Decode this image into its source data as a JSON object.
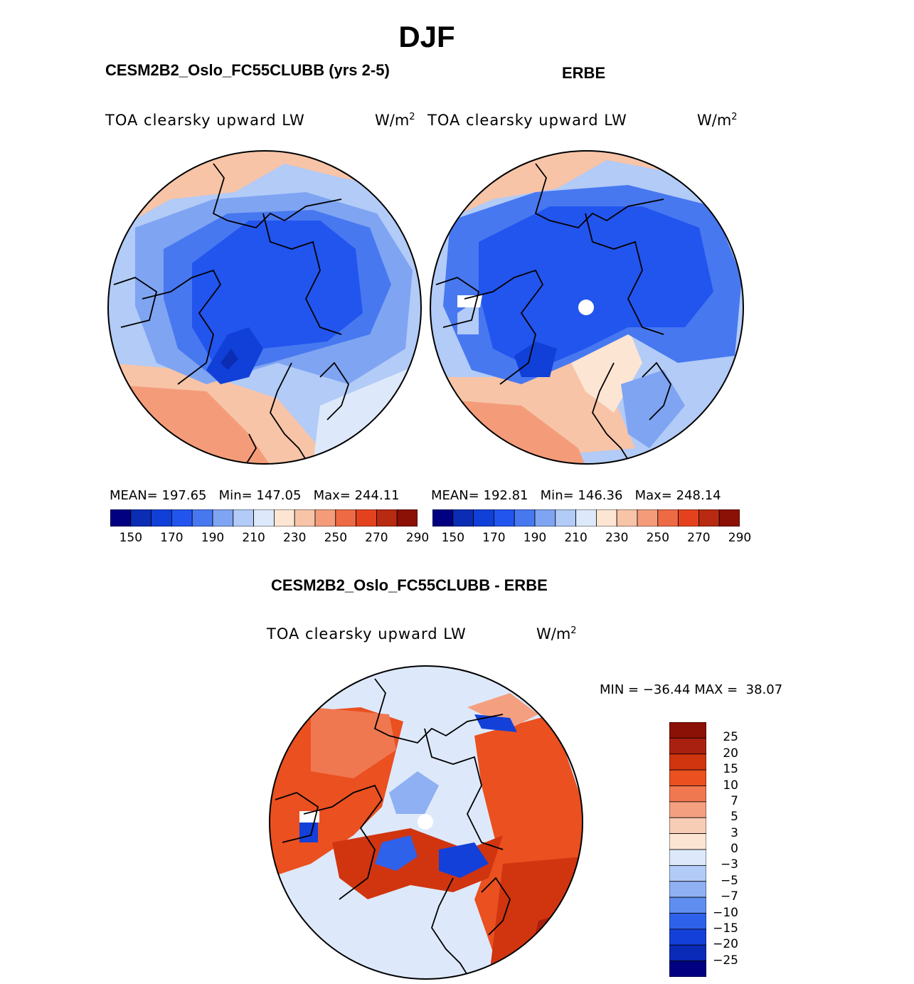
{
  "season": "DJF",
  "panels": [
    {
      "title": "CESM2B2_Oslo_FC55CLUBB (yrs 2-5)",
      "variable": "TOA clearsky upward LW",
      "units_base": "W/m",
      "units_exp": "2",
      "stats": {
        "mean_label": "MEAN=",
        "mean": "197.65",
        "min_label": "Min=",
        "min": "147.05",
        "max_label": "Max=",
        "max": "244.11"
      },
      "colorbar_labels": [
        "150",
        "170",
        "190",
        "210",
        "230",
        "250",
        "270",
        "290"
      ]
    },
    {
      "title": "ERBE",
      "variable": "TOA clearsky upward LW",
      "units_base": "W/m",
      "units_exp": "2",
      "stats": {
        "mean_label": "MEAN=",
        "mean": "192.81",
        "min_label": "Min=",
        "min": "146.36",
        "max_label": "Max=",
        "max": "248.14"
      },
      "colorbar_labels": [
        "150",
        "170",
        "190",
        "210",
        "230",
        "250",
        "270",
        "290"
      ]
    }
  ],
  "difference": {
    "title": "CESM2B2_Oslo_FC55CLUBB - ERBE",
    "variable": "TOA clearsky upward LW",
    "units_base": "W/m",
    "units_exp": "2",
    "min_label": "MIN =",
    "min": "−36.44",
    "max_label": "MAX =",
    "max": "38.07",
    "colorbar_labels": [
      "25",
      "20",
      "15",
      "10",
      "7",
      "5",
      "3",
      "0",
      "−3",
      "−5",
      "−7",
      "−10",
      "−15",
      "−20",
      "−25"
    ]
  },
  "colors": {
    "seq_scale": [
      "#000080",
      "#0a2db4",
      "#1040d8",
      "#2255ee",
      "#4778f0",
      "#7fa4f2",
      "#b2cbf7",
      "#dde9fb",
      "#fde5d4",
      "#f7c4a8",
      "#f49c7a",
      "#ee6a45",
      "#e4421f",
      "#b82b12",
      "#8b1005"
    ],
    "diff_scale": [
      "#8b1005",
      "#aa2010",
      "#d03510",
      "#ea5020",
      "#f07850",
      "#f4a080",
      "#f8cdb5",
      "#fde5d4",
      "#dde9fb",
      "#b2cbf7",
      "#8fb0f3",
      "#5f8ef0",
      "#2f62ea",
      "#1340d8",
      "#0a2ab8",
      "#000080"
    ]
  }
}
